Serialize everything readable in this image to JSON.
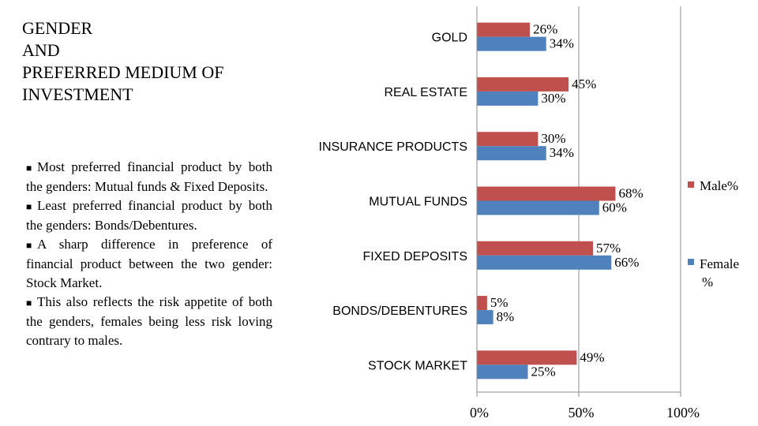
{
  "title_lines": [
    "GENDER",
    "AND",
    "PREFERRED MEDIUM OF",
    "INVESTMENT"
  ],
  "notes": [
    "Most preferred financial product by both the genders: Mutual funds & Fixed Deposits.",
    "Least preferred financial product by both the genders:  Bonds/Debentures.",
    "A sharp difference in preference of financial product between the two gender: Stock Market.",
    "This also reflects the risk appetite of both the genders, females being less risk loving contrary to males."
  ],
  "chart_data": {
    "type": "bar",
    "orientation": "horizontal",
    "categories": [
      "GOLD",
      "REAL ESTATE",
      "INSURANCE PRODUCTS",
      "MUTUAL FUNDS",
      "FIXED DEPOSITS",
      "BONDS/DEBENTURES",
      "STOCK MARKET"
    ],
    "series": [
      {
        "name": "Male%",
        "values": [
          26,
          45,
          30,
          68,
          57,
          5,
          49
        ],
        "labels": [
          "26%",
          "45%",
          "30%",
          "68%",
          "57%",
          "5%",
          "49%"
        ],
        "color": "#c0504d"
      },
      {
        "name": "Female %",
        "values": [
          34,
          30,
          34,
          60,
          66,
          8,
          25
        ],
        "labels": [
          "34%",
          "30%",
          "34%",
          "60%",
          "66%",
          "8%",
          "25%"
        ],
        "color": "#4f81bd"
      }
    ],
    "xlim": [
      0,
      100
    ],
    "xticks": [
      "0%",
      "50%",
      "100%"
    ],
    "grid": "vertical",
    "legend_position": "right"
  }
}
